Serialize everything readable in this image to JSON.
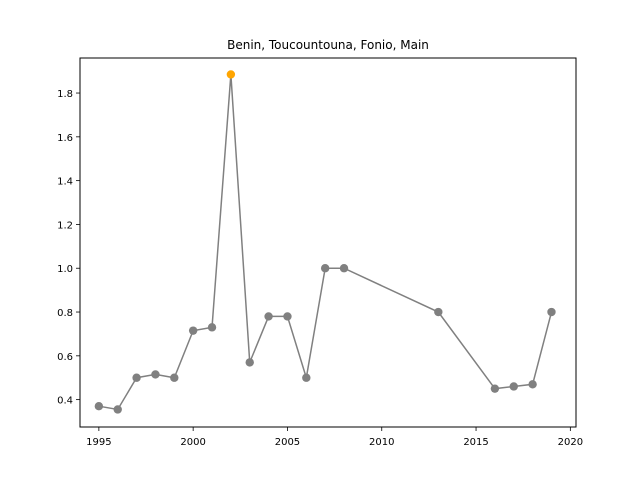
{
  "chart_data": {
    "type": "line",
    "title": "Benin, Toucountouna, Fonio, Main",
    "xlabel": "",
    "ylabel": "",
    "xlim": [
      1994.0,
      2020.3
    ],
    "ylim": [
      0.275,
      1.96
    ],
    "x_ticks": [
      1995,
      2000,
      2005,
      2010,
      2015,
      2020
    ],
    "y_ticks": [
      0.4,
      0.6,
      0.8,
      1.0,
      1.2,
      1.4,
      1.6,
      1.8
    ],
    "y_tick_labels": [
      "0.4",
      "0.6",
      "0.8",
      "1.0",
      "1.2",
      "1.4",
      "1.6",
      "1.8"
    ],
    "grid": false,
    "series": [
      {
        "color": "#808080",
        "x": [
          1995,
          1996,
          1997,
          1998,
          1999,
          2000,
          2001,
          2002,
          2003,
          2004,
          2005,
          2006,
          2007,
          2008,
          2013,
          2016,
          2017,
          2018,
          2019
        ],
        "y": [
          0.37,
          0.355,
          0.5,
          0.515,
          0.5,
          0.715,
          0.73,
          1.885,
          0.57,
          0.78,
          0.78,
          0.5,
          1.0,
          1.0,
          0.8,
          0.45,
          0.46,
          0.47,
          0.8
        ]
      }
    ],
    "highlight": {
      "x": 2002,
      "y": 1.885,
      "color": "#ffa500"
    }
  }
}
